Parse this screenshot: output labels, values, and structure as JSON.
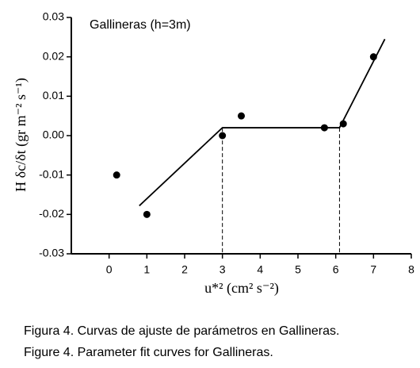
{
  "chart_data": {
    "type": "scatter",
    "annotation": "Gallineras (h=3m)",
    "y_label": "H δc/δt (gr m⁻² s⁻¹)",
    "x_label": "u*² (cm² s⁻²)",
    "x": [
      0.2,
      1,
      3,
      3.5,
      5.7,
      6.2,
      7
    ],
    "series": [
      {
        "color": "#000000",
        "values": [
          -0.01,
          -0.02,
          0.0,
          0.005,
          0.002,
          0.003,
          0.02
        ]
      }
    ],
    "fit": {
      "x": [
        0.8,
        3,
        6.1,
        7.3
      ],
      "values": [
        -0.0178,
        0.002,
        0.002,
        0.0245
      ]
    },
    "guides_x": [
      3,
      6.1
    ],
    "xlim": [
      -1,
      8
    ],
    "xticks": [
      0,
      1,
      2,
      3,
      4,
      5,
      6,
      7,
      8
    ],
    "ylim": [
      -0.03,
      0.03
    ],
    "yticks": [
      -0.03,
      -0.02,
      -0.01,
      {
        "value": 0,
        "label": "0.00"
      },
      0.01,
      0.02,
      0.03
    ],
    "captions": [
      "Figura 4. Curvas de ajuste de parámetros en Gallineras.",
      "Figure 4. Parameter fit curves for Gallineras."
    ]
  }
}
